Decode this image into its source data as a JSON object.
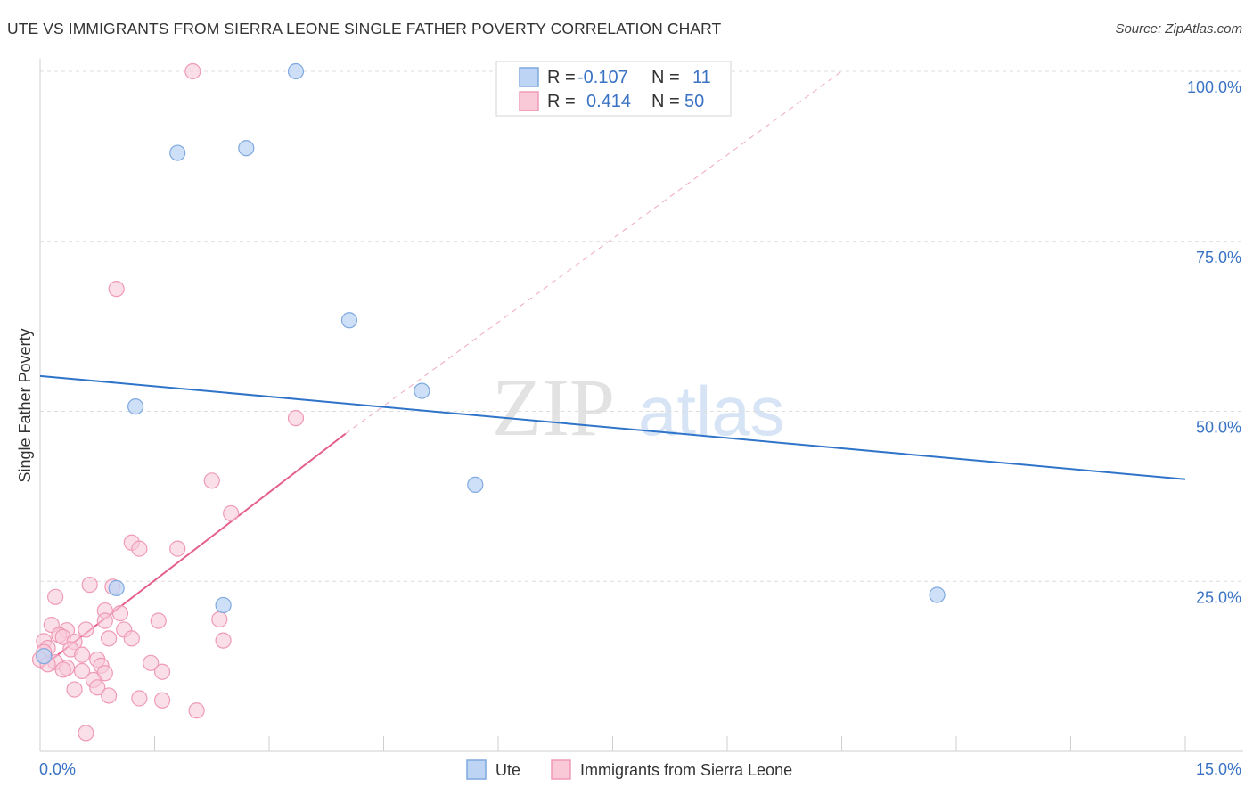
{
  "header": {
    "title": "UTE VS IMMIGRANTS FROM SIERRA LEONE SINGLE FATHER POVERTY CORRELATION CHART",
    "source": "Source: ZipAtlas.com"
  },
  "watermark": {
    "zip": "ZIP",
    "atlas": "atlas"
  },
  "stats": [
    {
      "r_label": "R =",
      "r_value": "-0.107",
      "n_label": "N =",
      "n_value": "11",
      "color": "#7fb0e8"
    },
    {
      "r_label": "R =",
      "r_value": "0.414",
      "n_label": "N =",
      "n_value": "50",
      "color": "#f3a8c0"
    }
  ],
  "colors": {
    "ute_fill": "#bdd4f5",
    "ute_stroke": "#7fa9df",
    "ute_line": "#2f74c9",
    "sl_fill": "#f9c9d8",
    "sl_stroke": "#ef9ab5",
    "sl_line": "#e4608c",
    "value_text": "#3a73c4",
    "grid": "#dcdcdc"
  },
  "chart_data": {
    "type": "scatter",
    "title": "UTE VS IMMIGRANTS FROM SIERRA LEONE SINGLE FATHER POVERTY CORRELATION CHART",
    "xlabel": "",
    "ylabel": "Single Father Poverty",
    "xlim": [
      0,
      15
    ],
    "ylim": [
      0,
      100
    ],
    "x_tick_labels": [
      "0.0%",
      "15.0%"
    ],
    "y_tick_labels": [
      "100.0%",
      "75.0%",
      "50.0%",
      "25.0%"
    ],
    "y_ticks": [
      100,
      75,
      50,
      25
    ],
    "grid": true,
    "legend_position": "bottom",
    "series": [
      {
        "name": "Ute",
        "points": [
          [
            1.8,
            88.0
          ],
          [
            2.7,
            88.7
          ],
          [
            3.35,
            100.0
          ],
          [
            4.05,
            63.4
          ],
          [
            5.0,
            53.0
          ],
          [
            1.25,
            50.7
          ],
          [
            5.7,
            39.2
          ],
          [
            2.4,
            21.5
          ],
          [
            1.0,
            24.0
          ],
          [
            11.75,
            23.0
          ],
          [
            0.05,
            14.0
          ]
        ],
        "trend": {
          "x": [
            0,
            15
          ],
          "y": [
            55.2,
            40.0
          ]
        }
      },
      {
        "name": "Immigrants from Sierra Leone",
        "points": [
          [
            2.0,
            100.0
          ],
          [
            1.0,
            68.0
          ],
          [
            3.35,
            49.0
          ],
          [
            2.25,
            39.8
          ],
          [
            2.5,
            35.0
          ],
          [
            1.2,
            30.7
          ],
          [
            1.3,
            29.8
          ],
          [
            1.8,
            29.8
          ],
          [
            0.65,
            24.5
          ],
          [
            0.95,
            24.2
          ],
          [
            0.2,
            22.7
          ],
          [
            0.85,
            20.7
          ],
          [
            1.05,
            20.3
          ],
          [
            0.85,
            19.2
          ],
          [
            1.55,
            19.2
          ],
          [
            2.35,
            19.4
          ],
          [
            0.15,
            18.6
          ],
          [
            0.35,
            17.8
          ],
          [
            0.6,
            17.9
          ],
          [
            1.1,
            17.9
          ],
          [
            0.25,
            17.1
          ],
          [
            0.3,
            16.8
          ],
          [
            0.9,
            16.6
          ],
          [
            1.2,
            16.6
          ],
          [
            2.4,
            16.3
          ],
          [
            0.05,
            16.2
          ],
          [
            0.45,
            16.1
          ],
          [
            0.1,
            15.2
          ],
          [
            0.4,
            15.0
          ],
          [
            0.05,
            14.6
          ],
          [
            0.55,
            14.2
          ],
          [
            0.75,
            13.5
          ],
          [
            0.2,
            13.1
          ],
          [
            0.8,
            12.6
          ],
          [
            1.45,
            13.0
          ],
          [
            0.35,
            12.3
          ],
          [
            0.55,
            11.8
          ],
          [
            0.85,
            11.5
          ],
          [
            1.6,
            11.7
          ],
          [
            0.7,
            10.5
          ],
          [
            0.75,
            9.4
          ],
          [
            0.45,
            9.1
          ],
          [
            0.9,
            8.2
          ],
          [
            1.3,
            7.8
          ],
          [
            1.6,
            7.5
          ],
          [
            2.05,
            6.0
          ],
          [
            0.6,
            2.7
          ],
          [
            0.0,
            13.5
          ],
          [
            0.1,
            12.8
          ],
          [
            0.3,
            12.0
          ]
        ],
        "trend": {
          "x": [
            0,
            4.0
          ],
          "y": [
            12.2,
            46.7
          ]
        },
        "trend_extension": {
          "x": [
            4.0,
            10.5
          ],
          "y": [
            46.7,
            100.0
          ]
        }
      }
    ]
  }
}
